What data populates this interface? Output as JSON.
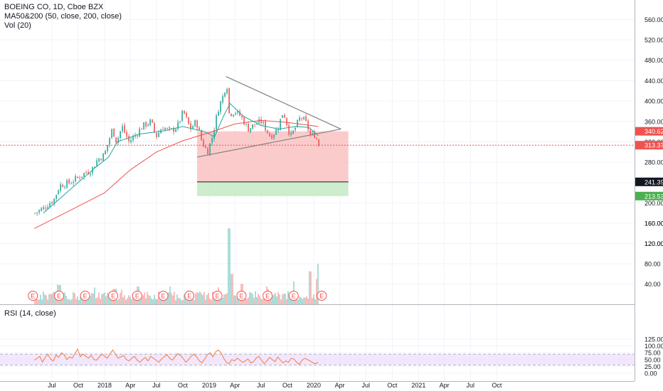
{
  "legend": {
    "symbol": "BOEING CO, 1D, Cboe BZX",
    "ma": "MA50&200 (50, close, 200, close)",
    "vol": "Vol (20)",
    "rsi": "RSI (14, close)"
  },
  "colors": {
    "up": "#26a69a",
    "down": "#ef5350",
    "ma50": "#26a69a",
    "ma200": "#ef5350",
    "rsi": "#f57c3d",
    "rsi_band": "#e9d7fb",
    "stop_zone": "#fbc5c5",
    "target_zone": "#c8ebc8",
    "trendline": "#808080"
  },
  "chart_data": [
    {
      "type": "candlestick",
      "title": "BOEING CO, 1D, Cboe BZX",
      "x_ticks": [
        "Jul",
        "Oct",
        "2018",
        "Apr",
        "Jul",
        "Oct",
        "2019",
        "Apr",
        "Jul",
        "Oct",
        "2020",
        "Apr",
        "Jul",
        "Oct",
        "2021",
        "Apr",
        "Jul",
        "Oct"
      ],
      "price_ticks": [
        "560.00",
        "520.00",
        "480.00",
        "440.00",
        "400.00",
        "360.00",
        "320.00",
        "280.00",
        "240.00",
        "200.00",
        "160.00",
        "120.00",
        "80.00",
        "40.00"
      ],
      "price_labels": [
        {
          "text": "340.62",
          "value": 340.62,
          "color": "#ef5350"
        },
        {
          "text": "313.37",
          "value": 313.37,
          "color": "#ef5350"
        },
        {
          "text": "241.39",
          "value": 241.39,
          "color": "#131722"
        },
        {
          "text": "213.53",
          "value": 213.53,
          "color": "#4caf50"
        }
      ],
      "price_path": [
        [
          "2017-05-01",
          180
        ],
        [
          "2017-06-01",
          190
        ],
        [
          "2017-06-20",
          200
        ],
        [
          "2017-07-05",
          205
        ],
        [
          "2017-07-27",
          235
        ],
        [
          "2017-09-01",
          240
        ],
        [
          "2017-10-20",
          258
        ],
        [
          "2017-11-15",
          265
        ],
        [
          "2017-12-05",
          285
        ],
        [
          "2017-12-30",
          295
        ],
        [
          "2018-01-26",
          345
        ],
        [
          "2018-02-10",
          320
        ],
        [
          "2018-03-01",
          350
        ],
        [
          "2018-03-25",
          320
        ],
        [
          "2018-04-20",
          335
        ],
        [
          "2018-05-10",
          350
        ],
        [
          "2018-06-10",
          360
        ],
        [
          "2018-06-28",
          330
        ],
        [
          "2018-07-20",
          350
        ],
        [
          "2018-08-15",
          340
        ],
        [
          "2018-09-10",
          350
        ],
        [
          "2018-10-01",
          380
        ],
        [
          "2018-10-25",
          345
        ],
        [
          "2018-11-15",
          360
        ],
        [
          "2018-12-05",
          320
        ],
        [
          "2018-12-24",
          300
        ],
        [
          "2019-01-10",
          330
        ],
        [
          "2019-01-31",
          385
        ],
        [
          "2019-02-20",
          415
        ],
        [
          "2019-03-01",
          440
        ],
        [
          "2019-03-10",
          375
        ],
        [
          "2019-03-30",
          380
        ],
        [
          "2019-04-20",
          370
        ],
        [
          "2019-05-15",
          345
        ],
        [
          "2019-06-10",
          355
        ],
        [
          "2019-07-01",
          360
        ],
        [
          "2019-08-01",
          330
        ],
        [
          "2019-08-25",
          345
        ],
        [
          "2019-09-15",
          380
        ],
        [
          "2019-10-10",
          330
        ],
        [
          "2019-10-25",
          345
        ],
        [
          "2019-11-15",
          370
        ],
        [
          "2019-12-05",
          355
        ],
        [
          "2019-12-20",
          330
        ],
        [
          "2020-01-01",
          335
        ],
        [
          "2020-01-10",
          325
        ],
        [
          "2020-01-17",
          313.37
        ]
      ],
      "ma50_path": [
        [
          "2017-06-01",
          180
        ],
        [
          "2017-08-01",
          210
        ],
        [
          "2017-10-01",
          240
        ],
        [
          "2017-12-01",
          270
        ],
        [
          "2018-01-15",
          290
        ],
        [
          "2018-02-15",
          320
        ],
        [
          "2018-05-01",
          335
        ],
        [
          "2018-08-01",
          342
        ],
        [
          "2018-10-01",
          350
        ],
        [
          "2018-12-15",
          340
        ],
        [
          "2019-01-20",
          330
        ],
        [
          "2019-02-20",
          370
        ],
        [
          "2019-03-15",
          395
        ],
        [
          "2019-05-01",
          370
        ],
        [
          "2019-07-01",
          352
        ],
        [
          "2019-09-01",
          345
        ],
        [
          "2019-11-01",
          350
        ],
        [
          "2019-12-15",
          348
        ],
        [
          "2020-01-17",
          332
        ]
      ],
      "ma200_path": [
        [
          "2017-05-01",
          150
        ],
        [
          "2017-09-01",
          185
        ],
        [
          "2018-01-01",
          220
        ],
        [
          "2018-04-01",
          265
        ],
        [
          "2018-07-01",
          300
        ],
        [
          "2018-10-01",
          322
        ],
        [
          "2019-01-01",
          338
        ],
        [
          "2019-04-01",
          355
        ],
        [
          "2019-07-01",
          362
        ],
        [
          "2019-10-01",
          358
        ],
        [
          "2020-01-17",
          350
        ]
      ],
      "volume_path": [
        [
          "2017-05-01",
          12
        ],
        [
          "2017-07-27",
          38
        ],
        [
          "2017-10-25",
          25
        ],
        [
          "2018-01-31",
          30
        ],
        [
          "2018-04-25",
          35
        ],
        [
          "2018-10-24",
          22
        ],
        [
          "2019-03-11",
          150
        ],
        [
          "2019-03-20",
          60
        ],
        [
          "2019-04-24",
          40
        ],
        [
          "2019-07-24",
          30
        ],
        [
          "2019-10-23",
          45
        ],
        [
          "2019-12-17",
          65
        ],
        [
          "2020-01-10",
          50
        ],
        [
          "2020-01-17",
          80
        ]
      ],
      "volume_ticks": [
        "80.00",
        "40.00"
      ],
      "trendlines": [
        {
          "from": [
            "2019-03-01",
            448
          ],
          "to": [
            "2020-04-05",
            345
          ]
        },
        {
          "from": [
            "2018-11-20",
            290
          ],
          "to": [
            "2020-04-05",
            345
          ]
        }
      ],
      "position_zones": {
        "entry": 340.62,
        "stop_level": 241.39,
        "target_level": 213.53,
        "x_start": "2018-11-20",
        "x_end": "2020-05-01"
      },
      "earnings_markers": {
        "label": "E",
        "dates": [
          "2017-04-26",
          "2017-07-26",
          "2017-10-25",
          "2018-01-31",
          "2018-04-25",
          "2018-07-25",
          "2018-10-24",
          "2019-01-30",
          "2019-04-24",
          "2019-07-24",
          "2019-10-23",
          "2020-01-29"
        ]
      }
    },
    {
      "type": "line",
      "title": "RSI (14, close)",
      "ticks": [
        "125.00",
        "100.00",
        "75.00",
        "50.00",
        "25.00",
        "0.00"
      ],
      "band": [
        30,
        70
      ],
      "rsi_values": [
        48,
        55,
        62,
        40,
        58,
        70,
        52,
        45,
        66,
        58,
        75,
        68,
        50,
        60,
        55,
        72,
        88,
        60,
        70,
        62,
        55,
        65,
        50,
        48,
        60,
        70,
        62,
        55,
        72,
        85,
        68,
        55,
        60,
        65,
        50,
        45,
        55,
        62,
        48,
        40,
        50,
        58,
        45,
        62,
        55,
        48,
        40,
        52,
        60,
        68,
        55,
        48,
        60,
        72,
        65,
        55,
        40,
        50,
        62,
        70,
        60,
        45,
        38,
        52,
        68,
        75,
        60,
        78,
        85,
        75,
        55,
        40,
        35,
        50,
        45,
        55,
        48,
        40,
        45,
        52,
        38,
        42,
        55,
        62,
        48,
        35,
        45,
        58,
        50,
        42,
        60,
        48,
        38,
        45,
        40,
        55,
        52,
        40,
        32,
        48,
        55,
        50,
        45,
        38,
        35,
        40
      ]
    }
  ]
}
